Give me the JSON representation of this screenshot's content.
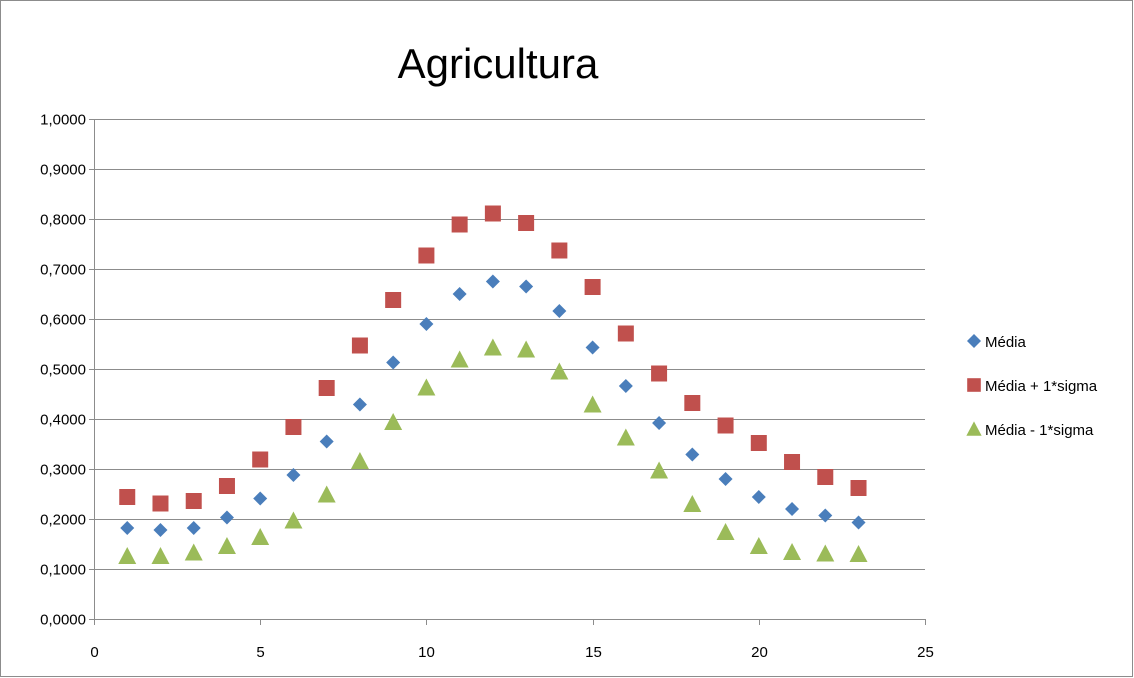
{
  "chart_data": {
    "type": "scatter",
    "title": "Agricultura",
    "xlabel": "",
    "ylabel": "",
    "xlim": [
      0,
      25
    ],
    "ylim": [
      0,
      1
    ],
    "x_ticks": [
      0,
      5,
      10,
      15,
      20,
      25
    ],
    "x_tick_labels": [
      "0",
      "5",
      "10",
      "15",
      "20",
      "25"
    ],
    "y_ticks": [
      0,
      0.1,
      0.2,
      0.3,
      0.4,
      0.5,
      0.6,
      0.7,
      0.8,
      0.9,
      1.0
    ],
    "y_tick_labels": [
      "0,0000",
      "0,1000",
      "0,2000",
      "0,3000",
      "0,4000",
      "0,5000",
      "0,6000",
      "0,7000",
      "0,8000",
      "0,9000",
      "1,0000"
    ],
    "grid": "horizontal",
    "legend_position": "right",
    "x": [
      1,
      2,
      3,
      4,
      5,
      6,
      7,
      8,
      9,
      10,
      11,
      12,
      13,
      14,
      15,
      16,
      17,
      18,
      19,
      20,
      21,
      22,
      23
    ],
    "series": [
      {
        "name": "Média",
        "marker": "diamond",
        "color": "#4a7ebb",
        "values": [
          0.182,
          0.178,
          0.182,
          0.203,
          0.241,
          0.288,
          0.355,
          0.429,
          0.513,
          0.59,
          0.65,
          0.675,
          0.665,
          0.616,
          0.543,
          0.466,
          0.392,
          0.329,
          0.28,
          0.244,
          0.22,
          0.207,
          0.193
        ]
      },
      {
        "name": "Média + 1*sigma",
        "marker": "square",
        "color": "#c0504d",
        "values": [
          0.244,
          0.231,
          0.236,
          0.266,
          0.319,
          0.384,
          0.462,
          0.547,
          0.638,
          0.727,
          0.789,
          0.811,
          0.792,
          0.737,
          0.664,
          0.571,
          0.491,
          0.432,
          0.387,
          0.352,
          0.314,
          0.284,
          0.262
        ]
      },
      {
        "name": "Média - 1*sigma",
        "marker": "triangle",
        "color": "#9bbb59",
        "values": [
          0.126,
          0.126,
          0.133,
          0.146,
          0.164,
          0.197,
          0.249,
          0.316,
          0.394,
          0.463,
          0.519,
          0.543,
          0.539,
          0.495,
          0.429,
          0.363,
          0.297,
          0.23,
          0.174,
          0.146,
          0.134,
          0.131,
          0.13
        ]
      }
    ]
  }
}
